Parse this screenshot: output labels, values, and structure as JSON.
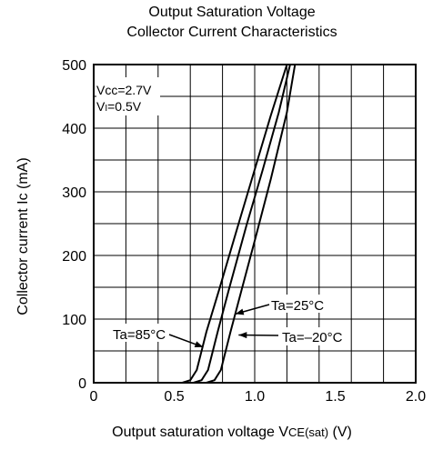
{
  "chart_data": {
    "type": "line",
    "title": [
      "Output Saturation Voltage",
      "Collector Current Characteristics"
    ],
    "xlabel": {
      "main": "Output saturation voltage  V",
      "sub": "CE(sat)",
      "unit": " (V)"
    },
    "ylabel": "Collector current  Ic (mA)",
    "xlim": [
      0,
      2.0
    ],
    "ylim": [
      0,
      500
    ],
    "xticks": [
      "0",
      "0.5",
      "1.0",
      "1.5",
      "2.0"
    ],
    "yticks": [
      "0",
      "100",
      "200",
      "300",
      "400",
      "500"
    ],
    "grid": true,
    "conditions": {
      "vcc": "Vcc=2.7V",
      "vi_main": "V",
      "vi_sub": "I",
      "vi_val": "=0.5V"
    },
    "series": [
      {
        "name": "Ta=85°C",
        "x": [
          0.55,
          0.6,
          0.64,
          0.67,
          0.7,
          0.78,
          0.9,
          1.0,
          1.1,
          1.2
        ],
        "y": [
          0,
          4,
          20,
          50,
          80,
          147,
          250,
          335,
          420,
          500
        ]
      },
      {
        "name": "Ta=25°C",
        "x": [
          0.62,
          0.67,
          0.71,
          0.74,
          0.77,
          0.84,
          0.95,
          1.05,
          1.15,
          1.22
        ],
        "y": [
          0,
          4,
          20,
          50,
          80,
          147,
          248,
          335,
          425,
          500
        ]
      },
      {
        "name": "Ta=–20°C",
        "x": [
          0.7,
          0.75,
          0.79,
          0.82,
          0.85,
          0.92,
          1.0,
          1.1,
          1.2,
          1.25
        ],
        "y": [
          0,
          4,
          20,
          50,
          80,
          147,
          223,
          320,
          425,
          500
        ]
      }
    ],
    "annotations": [
      "Ta=85°C",
      "Ta=25°C",
      "Ta=–20°C"
    ]
  }
}
